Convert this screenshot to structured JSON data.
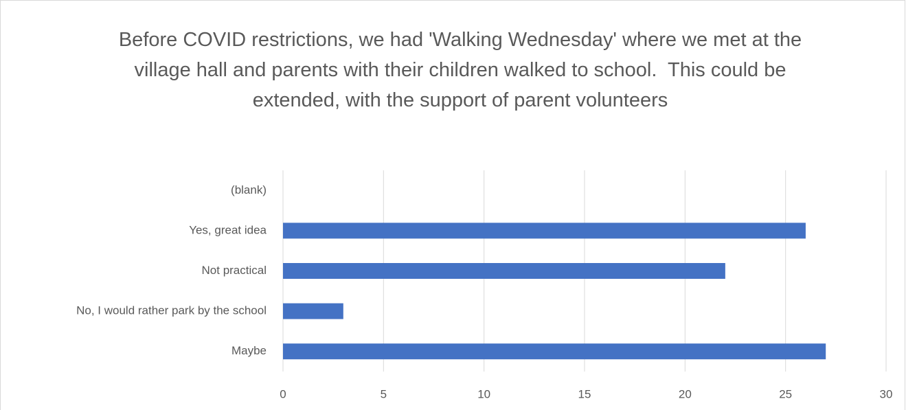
{
  "chart_data": {
    "type": "barh",
    "title": "Before COVID restrictions, we had 'Walking Wednesday' where we met at the village hall and parents with their children walked to school.  This could be extended, with the support of parent volunteers",
    "categories": [
      "(blank)",
      "Yes, great idea",
      "Not practical",
      "No, I would rather park by the school",
      "Maybe"
    ],
    "values": [
      null,
      26,
      22,
      3,
      27
    ],
    "color": "#4472c4",
    "xlim": [
      0,
      30
    ],
    "xticks": [
      0,
      5,
      10,
      15,
      20,
      25,
      30
    ],
    "grid": true
  }
}
